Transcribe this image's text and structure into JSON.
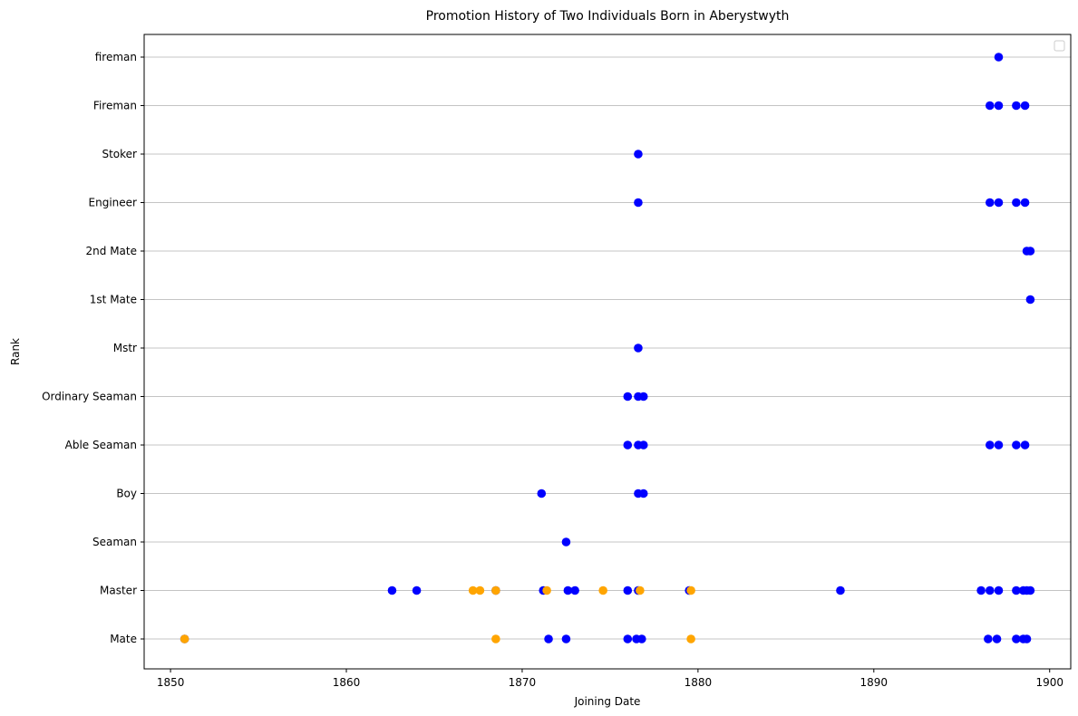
{
  "chart_data": {
    "type": "scatter",
    "title": "Promotion History of Two Individuals Born in Aberystwyth",
    "xlabel": "Joining Date",
    "ylabel": "Rank",
    "xlim": [
      1848.5,
      1901.2
    ],
    "xticks": [
      1850,
      1860,
      1870,
      1880,
      1890,
      1900
    ],
    "categories": [
      "Mate",
      "Master",
      "Seaman",
      "Boy",
      "Able Seaman",
      "Ordinary Seaman",
      "Mstr",
      "1st Mate",
      "2nd Mate",
      "Engineer",
      "Stoker",
      "Fireman",
      "fireman"
    ],
    "grid": "horizontal",
    "legend": "top-right (empty)",
    "series": [
      {
        "color": "#0000ff",
        "points": [
          {
            "x": 1850.8,
            "y": "Mate"
          },
          {
            "x": 1871.5,
            "y": "Mate"
          },
          {
            "x": 1872.5,
            "y": "Mate"
          },
          {
            "x": 1876.0,
            "y": "Mate"
          },
          {
            "x": 1876.5,
            "y": "Mate"
          },
          {
            "x": 1876.8,
            "y": "Mate"
          },
          {
            "x": 1896.5,
            "y": "Mate"
          },
          {
            "x": 1897.0,
            "y": "Mate"
          },
          {
            "x": 1898.1,
            "y": "Mate"
          },
          {
            "x": 1898.5,
            "y": "Mate"
          },
          {
            "x": 1898.7,
            "y": "Mate"
          },
          {
            "x": 1862.6,
            "y": "Master"
          },
          {
            "x": 1864.0,
            "y": "Master"
          },
          {
            "x": 1868.5,
            "y": "Master"
          },
          {
            "x": 1871.2,
            "y": "Master"
          },
          {
            "x": 1872.6,
            "y": "Master"
          },
          {
            "x": 1873.0,
            "y": "Master"
          },
          {
            "x": 1876.0,
            "y": "Master"
          },
          {
            "x": 1876.6,
            "y": "Master"
          },
          {
            "x": 1879.5,
            "y": "Master"
          },
          {
            "x": 1888.1,
            "y": "Master"
          },
          {
            "x": 1896.1,
            "y": "Master"
          },
          {
            "x": 1896.6,
            "y": "Master"
          },
          {
            "x": 1897.1,
            "y": "Master"
          },
          {
            "x": 1898.1,
            "y": "Master"
          },
          {
            "x": 1898.5,
            "y": "Master"
          },
          {
            "x": 1898.7,
            "y": "Master"
          },
          {
            "x": 1898.9,
            "y": "Master"
          },
          {
            "x": 1872.5,
            "y": "Seaman"
          },
          {
            "x": 1871.1,
            "y": "Boy"
          },
          {
            "x": 1876.6,
            "y": "Boy"
          },
          {
            "x": 1876.9,
            "y": "Boy"
          },
          {
            "x": 1876.0,
            "y": "Able Seaman"
          },
          {
            "x": 1876.6,
            "y": "Able Seaman"
          },
          {
            "x": 1876.9,
            "y": "Able Seaman"
          },
          {
            "x": 1896.6,
            "y": "Able Seaman"
          },
          {
            "x": 1897.1,
            "y": "Able Seaman"
          },
          {
            "x": 1898.1,
            "y": "Able Seaman"
          },
          {
            "x": 1898.6,
            "y": "Able Seaman"
          },
          {
            "x": 1876.0,
            "y": "Ordinary Seaman"
          },
          {
            "x": 1876.6,
            "y": "Ordinary Seaman"
          },
          {
            "x": 1876.9,
            "y": "Ordinary Seaman"
          },
          {
            "x": 1876.6,
            "y": "Mstr"
          },
          {
            "x": 1898.9,
            "y": "1st Mate"
          },
          {
            "x": 1898.7,
            "y": "2nd Mate"
          },
          {
            "x": 1898.9,
            "y": "2nd Mate"
          },
          {
            "x": 1876.6,
            "y": "Engineer"
          },
          {
            "x": 1896.6,
            "y": "Engineer"
          },
          {
            "x": 1897.1,
            "y": "Engineer"
          },
          {
            "x": 1898.1,
            "y": "Engineer"
          },
          {
            "x": 1898.6,
            "y": "Engineer"
          },
          {
            "x": 1876.6,
            "y": "Stoker"
          },
          {
            "x": 1896.6,
            "y": "Fireman"
          },
          {
            "x": 1897.1,
            "y": "Fireman"
          },
          {
            "x": 1898.1,
            "y": "Fireman"
          },
          {
            "x": 1898.6,
            "y": "Fireman"
          },
          {
            "x": 1897.1,
            "y": "fireman"
          }
        ]
      },
      {
        "color": "#ffa500",
        "points": [
          {
            "x": 1850.8,
            "y": "Mate"
          },
          {
            "x": 1868.5,
            "y": "Mate"
          },
          {
            "x": 1879.6,
            "y": "Mate"
          },
          {
            "x": 1867.2,
            "y": "Master"
          },
          {
            "x": 1867.6,
            "y": "Master"
          },
          {
            "x": 1868.5,
            "y": "Master"
          },
          {
            "x": 1871.4,
            "y": "Master"
          },
          {
            "x": 1874.6,
            "y": "Master"
          },
          {
            "x": 1876.7,
            "y": "Master"
          },
          {
            "x": 1879.6,
            "y": "Master"
          }
        ]
      }
    ]
  }
}
